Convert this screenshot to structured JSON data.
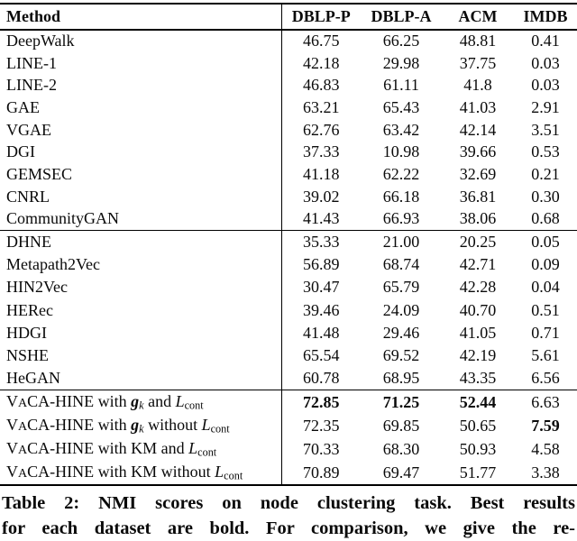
{
  "colors": {
    "ink": "#0a0a0a",
    "background": "#ffffff"
  },
  "table": {
    "columns": [
      "Method",
      "DBLP-P",
      "DBLP-A",
      "ACM",
      "IMDB"
    ],
    "groups": [
      [
        {
          "label": "DeepWalk",
          "values": [
            "46.75",
            "66.25",
            "48.81",
            "0.41"
          ]
        },
        {
          "label": "LINE-1",
          "values": [
            "42.18",
            "29.98",
            "37.75",
            "0.03"
          ]
        },
        {
          "label": "LINE-2",
          "values": [
            "46.83",
            "61.11",
            "41.8",
            "0.03"
          ]
        },
        {
          "label": "GAE",
          "values": [
            "63.21",
            "65.43",
            "41.03",
            "2.91"
          ]
        },
        {
          "label": "VGAE",
          "values": [
            "62.76",
            "63.42",
            "42.14",
            "3.51"
          ]
        },
        {
          "label": "DGI",
          "values": [
            "37.33",
            "10.98",
            "39.66",
            "0.53"
          ]
        },
        {
          "label": "GEMSEC",
          "values": [
            "41.18",
            "62.22",
            "32.69",
            "0.21"
          ]
        },
        {
          "label": "CNRL",
          "values": [
            "39.02",
            "66.18",
            "36.81",
            "0.30"
          ]
        },
        {
          "label": "CommunityGAN",
          "values": [
            "41.43",
            "66.93",
            "38.06",
            "0.68"
          ]
        }
      ],
      [
        {
          "label": "DHNE",
          "values": [
            "35.33",
            "21.00",
            "20.25",
            "0.05"
          ]
        },
        {
          "label": "Metapath2Vec",
          "values": [
            "56.89",
            "68.74",
            "42.71",
            "0.09"
          ]
        },
        {
          "label": "HIN2Vec",
          "values": [
            "30.47",
            "65.79",
            "42.28",
            "0.04"
          ]
        },
        {
          "label": "HERec",
          "values": [
            "39.46",
            "24.09",
            "40.70",
            "0.51"
          ]
        },
        {
          "label": "HDGI",
          "values": [
            "41.48",
            "29.46",
            "41.05",
            "0.71"
          ]
        },
        {
          "label": "NSHE",
          "values": [
            "65.54",
            "69.52",
            "42.19",
            "5.61"
          ]
        },
        {
          "label": "HeGAN",
          "values": [
            "60.78",
            "68.95",
            "43.35",
            "6.56"
          ]
        }
      ],
      [
        {
          "label": "VaCA-HINE with g_k and L_cont",
          "label_parts": [
            [
              "",
              "V"
            ],
            [
              "sc",
              "A"
            ],
            [
              "",
              "CA-HINE with "
            ],
            [
              "bi",
              "g"
            ],
            [
              "sb i",
              "k"
            ],
            [
              "",
              " and "
            ],
            [
              "i",
              "L"
            ],
            [
              "sb",
              "cont"
            ]
          ],
          "values": [
            "72.85",
            "71.25",
            "52.44",
            "6.63"
          ],
          "bold": [
            true,
            true,
            true,
            false
          ]
        },
        {
          "label": "VaCA-HINE with g_k without L_cont",
          "label_parts": [
            [
              "",
              "V"
            ],
            [
              "sc",
              "A"
            ],
            [
              "",
              "CA-HINE with "
            ],
            [
              "bi",
              "g"
            ],
            [
              "sb i",
              "k"
            ],
            [
              "",
              " without "
            ],
            [
              "i",
              "L"
            ],
            [
              "sb",
              "cont"
            ]
          ],
          "values": [
            "72.35",
            "69.85",
            "50.65",
            "7.59"
          ],
          "bold": [
            false,
            false,
            false,
            true
          ]
        },
        {
          "label": "VaCA-HINE with KM and L_cont",
          "label_parts": [
            [
              "",
              "V"
            ],
            [
              "sc",
              "A"
            ],
            [
              "",
              "CA-HINE with KM and "
            ],
            [
              "i",
              "L"
            ],
            [
              "sb",
              "cont"
            ]
          ],
          "values": [
            "70.33",
            "68.30",
            "50.93",
            "4.58"
          ],
          "bold": [
            false,
            false,
            false,
            false
          ]
        },
        {
          "label": "VaCA-HINE with KM without L_cont",
          "label_parts": [
            [
              "",
              "V"
            ],
            [
              "sc",
              "A"
            ],
            [
              "",
              "CA-HINE with KM without "
            ],
            [
              "i",
              "L"
            ],
            [
              "sb",
              "cont"
            ]
          ],
          "values": [
            "70.89",
            "69.47",
            "51.77",
            "3.38"
          ],
          "bold": [
            false,
            false,
            false,
            false
          ]
        }
      ]
    ]
  },
  "caption": {
    "line1": "Table 2: NMI scores on node clustering task. Best results",
    "line2": "for each dataset are bold. For comparison, we give the re-"
  }
}
